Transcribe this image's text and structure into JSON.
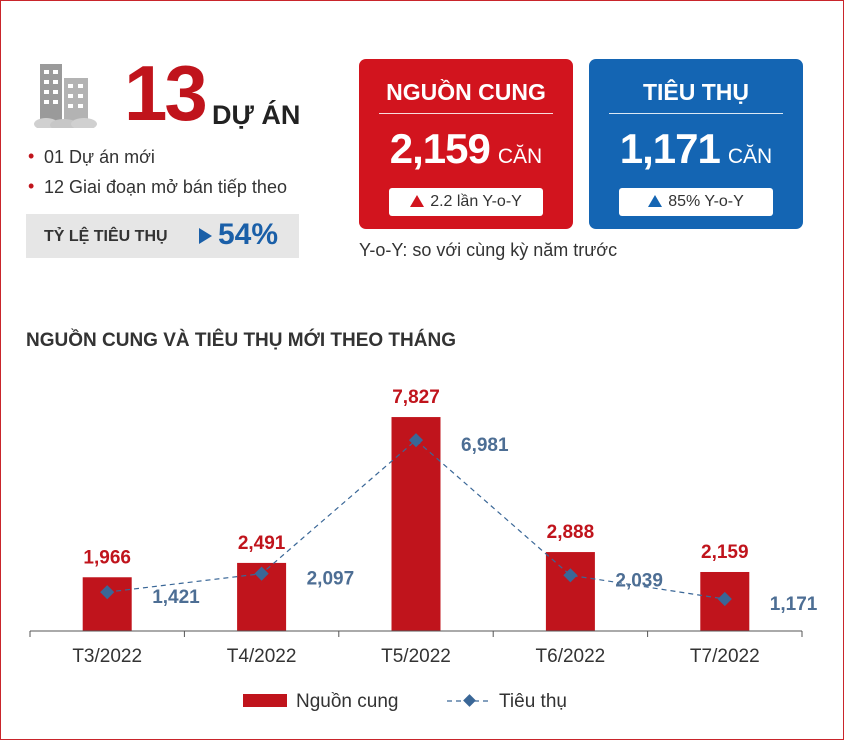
{
  "header": {
    "project_count": "13",
    "project_unit": "DỰ ÁN",
    "bullets": [
      "01 Dự án mới",
      "12 Giai đoạn mở bán tiếp theo"
    ],
    "rate_label": "TỶ LỆ TIÊU THỤ",
    "rate_value": "54%"
  },
  "cards": {
    "supply": {
      "title": "NGUỒN CUNG",
      "value": "2,159",
      "unit": "CĂN",
      "change": "2.2 lần Y-o-Y"
    },
    "absorption": {
      "title": "TIÊU THỤ",
      "value": "1,171",
      "unit": "CĂN",
      "change": "85% Y-o-Y"
    }
  },
  "yoy_note": "Y-o-Y: so với cùng kỳ năm trước",
  "colors": {
    "supply": "#c0141c",
    "absorption": "#1a5fa8",
    "absorption_label": "#4d6e94"
  },
  "chart_data": {
    "type": "bar",
    "title": "NGUỒN CUNG VÀ TIÊU THỤ MỚI THEO THÁNG",
    "categories": [
      "T3/2022",
      "T4/2022",
      "T5/2022",
      "T6/2022",
      "T7/2022"
    ],
    "series": [
      {
        "name": "Nguồn cung",
        "type": "bar",
        "values": [
          1966,
          2491,
          7827,
          2888,
          2159
        ],
        "labels": [
          "1,966",
          "2,491",
          "7,827",
          "2,888",
          "2,159"
        ]
      },
      {
        "name": "Tiêu thụ",
        "type": "line",
        "values": [
          1421,
          2097,
          6981,
          2039,
          1171
        ],
        "labels": [
          "1,421",
          "2,097",
          "6,981",
          "2,039",
          "1,171"
        ]
      }
    ],
    "ylim": [
      0,
      9000
    ],
    "grid": false,
    "legend": "bottom"
  }
}
